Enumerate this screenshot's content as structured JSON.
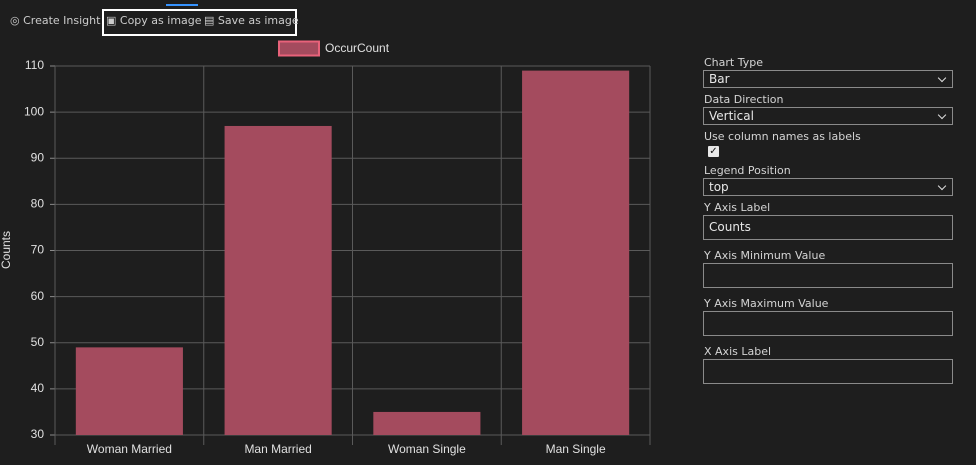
{
  "toolbar": {
    "items": [
      "Create Insight",
      "Copy as image",
      "Save as image"
    ]
  },
  "chart_data": {
    "type": "bar",
    "y_label": "Counts",
    "categories": [
      "Woman Married",
      "Man Married",
      "Woman Single",
      "Man Single"
    ],
    "series": [
      {
        "name": "OccurCount",
        "color": "#a44b5e",
        "values": [
          49,
          97,
          35,
          109
        ]
      }
    ],
    "ylim": [
      30,
      110
    ],
    "yticks": [
      30,
      40,
      50,
      60,
      70,
      80,
      90,
      100,
      110
    ],
    "grid": true,
    "legend": "top"
  },
  "panel": {
    "fields": [
      {
        "label": "Chart Type",
        "kind": "select",
        "value": "Bar"
      },
      {
        "label": "Data Direction",
        "kind": "select",
        "value": "Vertical"
      },
      {
        "label": "Use column names as labels",
        "kind": "checkbox",
        "checked": true
      },
      {
        "label": "Legend Position",
        "kind": "select",
        "value": "top"
      },
      {
        "label": "Y Axis Label",
        "kind": "input",
        "value": "Counts"
      },
      {
        "label": "Y Axis Minimum Value",
        "kind": "input"
      },
      {
        "label": "Y Axis Maximum Value",
        "kind": "input"
      },
      {
        "label": "X Axis Label",
        "kind": "input"
      }
    ]
  }
}
